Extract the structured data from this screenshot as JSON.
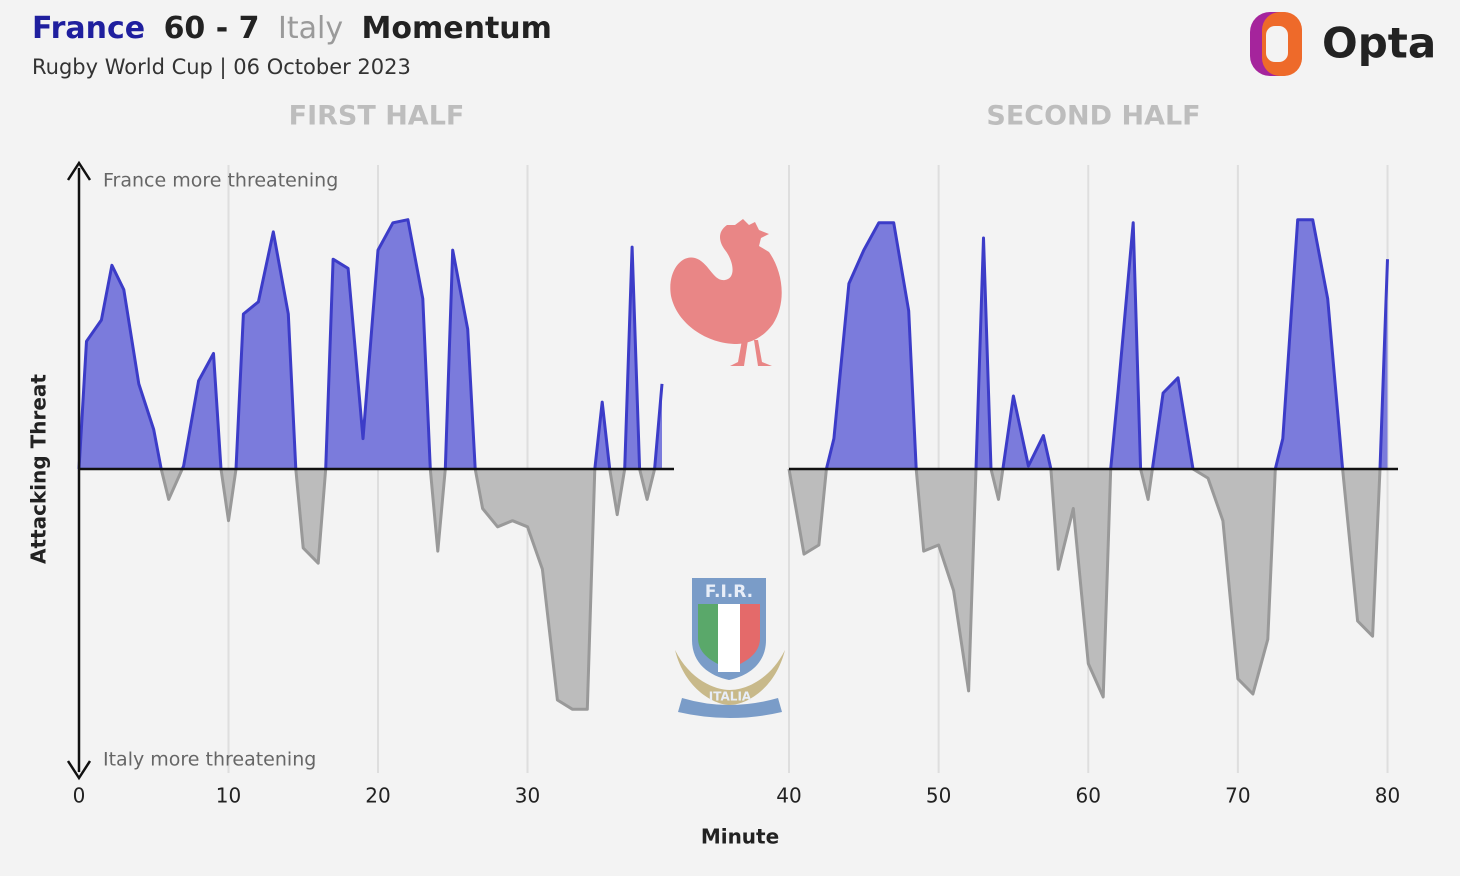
{
  "chart_data": {
    "type": "momentum",
    "title_parts": [
      {
        "text": "France",
        "color": "#1f1f9e"
      },
      {
        "text": "60 - 7",
        "color": "#222222"
      },
      {
        "text": "Italy",
        "color": "#9a9a9a"
      },
      {
        "text": "Momentum",
        "color": "#222222"
      }
    ],
    "subtitle": "Rugby World Cup | 06 October 2023",
    "brand": "Opta",
    "crest_texts": [
      "F.I.R.",
      "ITALIA"
    ],
    "annotations": {
      "top": "France more threatening",
      "bottom": "Italy more threatening"
    },
    "y_label": "Attacking Threat",
    "x_label": "Minute",
    "ylim": [
      -1,
      1
    ],
    "xticks": [
      0,
      10,
      20,
      30,
      40,
      50,
      60,
      70,
      80
    ],
    "grid": true,
    "positive_color": "#7b7bdc",
    "positive_line": "#3c3cc8",
    "negative_color": "#bcbcbc",
    "negative_line": "#999999",
    "series": [
      {
        "name": "FIRST HALF",
        "xlim": [
          0,
          39.8
        ],
        "x": [
          0,
          0.5,
          1.5,
          2.2,
          3,
          4,
          5,
          5.5,
          6,
          7,
          8,
          9,
          9.5,
          10,
          10.5,
          11,
          12,
          13,
          14,
          14.5,
          15,
          16,
          16.5,
          17,
          18,
          19,
          20,
          21,
          22,
          23,
          23.5,
          24,
          24.5,
          25,
          26,
          26.5,
          27,
          28,
          29,
          30,
          31,
          32,
          33,
          34,
          34.5,
          35,
          35.5,
          36,
          36.5,
          37,
          37.5,
          38,
          38.5,
          39
        ],
        "values": [
          0,
          0.42,
          0.49,
          0.67,
          0.59,
          0.28,
          0.13,
          0,
          -0.1,
          0.01,
          0.29,
          0.38,
          0,
          -0.17,
          0,
          0.51,
          0.55,
          0.78,
          0.51,
          0,
          -0.26,
          -0.31,
          0,
          0.69,
          0.66,
          0.1,
          0.72,
          0.81,
          0.82,
          0.56,
          0,
          -0.27,
          0,
          0.72,
          0.46,
          0,
          -0.13,
          -0.19,
          -0.17,
          -0.19,
          -0.33,
          -0.76,
          -0.79,
          -0.79,
          0,
          0.22,
          0,
          -0.15,
          0,
          0.73,
          0,
          -0.1,
          0,
          0.28
        ]
      },
      {
        "name": "SECOND HALF",
        "xlim": [
          40,
          80.7
        ],
        "x": [
          40,
          41,
          42,
          42.5,
          43,
          44,
          45,
          46,
          47,
          48,
          48.5,
          49,
          50,
          51,
          52,
          52.5,
          53,
          53.5,
          54,
          55,
          56,
          57,
          57.5,
          58,
          59,
          60,
          61,
          61.5,
          62,
          63,
          63.5,
          64,
          65,
          66,
          67,
          68,
          69,
          70,
          71,
          72,
          72.5,
          73,
          74,
          75,
          76,
          77,
          78,
          79,
          79.5,
          80
        ],
        "values": [
          0,
          -0.28,
          -0.25,
          0,
          0.1,
          0.61,
          0.72,
          0.81,
          0.81,
          0.52,
          0,
          -0.27,
          -0.25,
          -0.4,
          -0.73,
          0,
          0.76,
          0,
          -0.1,
          0.24,
          0.01,
          0.11,
          0,
          -0.33,
          -0.13,
          -0.64,
          -0.75,
          0,
          0.26,
          0.81,
          0,
          -0.1,
          0.25,
          0.3,
          0,
          -0.03,
          -0.17,
          -0.69,
          -0.74,
          -0.56,
          0,
          0.1,
          0.82,
          0.82,
          0.56,
          0,
          -0.5,
          -0.55,
          0,
          0.69
        ]
      }
    ]
  }
}
